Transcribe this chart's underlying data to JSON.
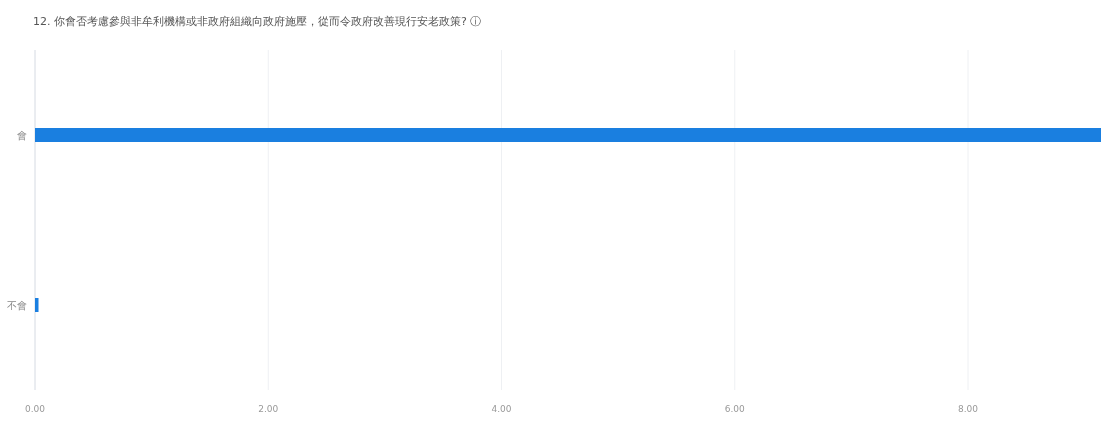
{
  "chart_data": {
    "type": "bar",
    "orientation": "horizontal",
    "title": "12. 你會否考慮參與非牟利機構或非政府組織向政府施壓，從而令政府改善現行安老政策? ⓘ",
    "categories": [
      "會",
      "不會"
    ],
    "values": [
      9.14,
      0.03
    ],
    "color": "#1a7fe0",
    "xlim": [
      0,
      9.14
    ],
    "xticks": [
      {
        "value": 0,
        "label": "0.00"
      },
      {
        "value": 2,
        "label": "2.00"
      },
      {
        "value": 4,
        "label": "4.00"
      },
      {
        "value": 6,
        "label": "6.00"
      },
      {
        "value": 8,
        "label": "8.00"
      }
    ],
    "grid": "x"
  }
}
